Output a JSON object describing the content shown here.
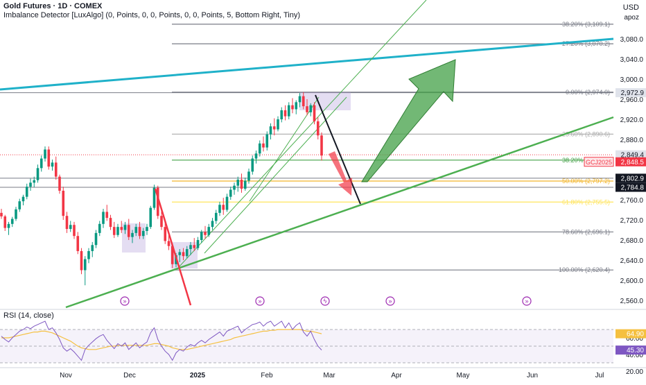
{
  "header": {
    "symbol_line": "Gold Futures · 1D · COMEX",
    "indicator_line": "Imbalance Detector [LuxAlgo] (0, Points, 0, 0, Points, 0, 0, Points, 5, Bottom Right, Tiny)",
    "currency": "USD",
    "apoz": "apoz",
    "rsi_label": "RSI (14, close)"
  },
  "colors": {
    "up": "#089981",
    "down": "#f23645",
    "cyan_line": "#1fb1c9",
    "green_line": "#4caf50",
    "fib_gray": "#787b86",
    "fib_green": "#43a047",
    "fib_orange": "#f2b52b",
    "fib_yellow": "#ffeb3b",
    "rsi_line": "#7e57c2",
    "rsi_ma": "#f5c040",
    "box": "#b39ddb"
  },
  "chart_data": {
    "type": "candlestick",
    "title": "Gold Futures · 1D · COMEX",
    "ylim": [
      2540,
      3150
    ],
    "y_ticks": [
      2560,
      2600,
      2640,
      2680,
      2720,
      2760,
      2800,
      2840,
      2880,
      2920,
      2960,
      3000,
      3040,
      3080
    ],
    "y_tick_labels": [
      "2,560.0",
      "2,600.0",
      "2,640.0",
      "2,680.0",
      "2,720.0",
      "2,760.0",
      "2,800.0",
      "2,840.0",
      "2,880.0",
      "2,920.0",
      "2,960.0",
      "3,000.0",
      "3,040.0",
      "3,080.0"
    ],
    "x_labels": [
      {
        "label": "Nov",
        "date": "2024-11-01"
      },
      {
        "label": "Dec",
        "date": "2024-12-01"
      },
      {
        "label": "2025",
        "date": "2025-01-01",
        "bold": true
      },
      {
        "label": "Feb",
        "date": "2025-02-01"
      },
      {
        "label": "Mar",
        "date": "2025-03-01"
      },
      {
        "label": "Apr",
        "date": "2025-04-01"
      },
      {
        "label": "May",
        "date": "2025-05-01"
      },
      {
        "label": "Jun",
        "date": "2025-06-01"
      },
      {
        "label": "Jul",
        "date": "2025-07-01"
      }
    ],
    "fib_levels": [
      {
        "ratio": "-38.20%",
        "price": 3109.1,
        "label": "-38.20% (3,109.1)",
        "color": "#787b86"
      },
      {
        "ratio": "-27.20%",
        "price": 3070.2,
        "label": "-27.20% (3,070.2)",
        "color": "#787b86"
      },
      {
        "ratio": "0.00%",
        "price": 2974.0,
        "label": "0.00% (2,974.0)",
        "color": "#787b86"
      },
      {
        "ratio": "23.60%",
        "price": 2890.6,
        "label": "23.60% (2,890.6)",
        "color": "#aaaaaa"
      },
      {
        "ratio": "38.20%",
        "price": 2838.9,
        "label": "38.20% (2,838.9)",
        "color": "#43a047"
      },
      {
        "ratio": "50.00%",
        "price": 2797.2,
        "label": "50.00% (2,797.2)",
        "color": "#f2b52b"
      },
      {
        "ratio": "61.80%",
        "price": 2755.5,
        "label": "61.80% (2,755.5)",
        "color": "#ffe45c"
      },
      {
        "ratio": "78.60%",
        "price": 2696.1,
        "label": "78.60% (2,696.1)",
        "color": "#787b86"
      },
      {
        "ratio": "100.00%",
        "price": 2620.4,
        "label": "100.00% (2,620.4)",
        "color": "#787b86"
      }
    ],
    "price_tags": [
      {
        "label": "2,972.9",
        "price": 2972.9,
        "bg": "#e0e3eb",
        "fg": "#131722"
      },
      {
        "label": "2,849.4",
        "price": 2849.4,
        "bg": "#e0e3eb",
        "fg": "#131722"
      },
      {
        "label": "2,848.5",
        "price": 2835.5,
        "bg": "#f23645",
        "fg": "#ffffff"
      },
      {
        "label": "2,802.9",
        "price": 2802.9,
        "bg": "#131722",
        "fg": "#ffffff"
      },
      {
        "label": "2,784.8",
        "price": 2784.8,
        "bg": "#131722",
        "fg": "#ffffff"
      }
    ],
    "symbol_tag": "GCJ2025",
    "candles": [
      [
        2734,
        2742,
        2722,
        2727
      ],
      [
        2727,
        2730,
        2698,
        2704
      ],
      [
        2704,
        2716,
        2690,
        2712
      ],
      [
        2712,
        2726,
        2706,
        2722
      ],
      [
        2722,
        2746,
        2718,
        2741
      ],
      [
        2741,
        2762,
        2736,
        2757
      ],
      [
        2757,
        2770,
        2749,
        2766
      ],
      [
        2766,
        2792,
        2761,
        2786
      ],
      [
        2786,
        2802,
        2778,
        2794
      ],
      [
        2794,
        2806,
        2785,
        2799
      ],
      [
        2799,
        2830,
        2794,
        2823
      ],
      [
        2823,
        2848,
        2816,
        2842
      ],
      [
        2842,
        2866,
        2836,
        2860
      ],
      [
        2860,
        2866,
        2820,
        2826
      ],
      [
        2826,
        2840,
        2818,
        2834
      ],
      [
        2834,
        2846,
        2800,
        2806
      ],
      [
        2806,
        2810,
        2772,
        2778
      ],
      [
        2778,
        2786,
        2720,
        2728
      ],
      [
        2728,
        2736,
        2694,
        2702
      ],
      [
        2702,
        2718,
        2696,
        2710
      ],
      [
        2710,
        2716,
        2682,
        2688
      ],
      [
        2688,
        2696,
        2652,
        2658
      ],
      [
        2658,
        2664,
        2612,
        2620
      ],
      [
        2620,
        2648,
        2590,
        2642
      ],
      [
        2642,
        2664,
        2634,
        2658
      ],
      [
        2658,
        2676,
        2646,
        2670
      ],
      [
        2670,
        2700,
        2664,
        2694
      ],
      [
        2694,
        2718,
        2688,
        2712
      ],
      [
        2712,
        2742,
        2704,
        2736
      ],
      [
        2736,
        2750,
        2718,
        2724
      ],
      [
        2724,
        2730,
        2700,
        2706
      ],
      [
        2706,
        2716,
        2684,
        2690
      ],
      [
        2690,
        2712,
        2686,
        2706
      ],
      [
        2706,
        2718,
        2694,
        2700
      ],
      [
        2700,
        2716,
        2692,
        2710
      ],
      [
        2710,
        2722,
        2680,
        2686
      ],
      [
        2686,
        2700,
        2674,
        2694
      ],
      [
        2694,
        2712,
        2688,
        2706
      ],
      [
        2706,
        2716,
        2682,
        2688
      ],
      [
        2688,
        2704,
        2682,
        2698
      ],
      [
        2698,
        2712,
        2690,
        2706
      ],
      [
        2706,
        2748,
        2702,
        2744
      ],
      [
        2744,
        2790,
        2740,
        2784
      ],
      [
        2784,
        2788,
        2722,
        2728
      ],
      [
        2728,
        2740,
        2700,
        2706
      ],
      [
        2706,
        2716,
        2672,
        2678
      ],
      [
        2678,
        2690,
        2660,
        2668
      ],
      [
        2668,
        2674,
        2624,
        2632
      ],
      [
        2632,
        2654,
        2626,
        2650
      ],
      [
        2650,
        2662,
        2636,
        2656
      ],
      [
        2656,
        2664,
        2640,
        2648
      ],
      [
        2648,
        2668,
        2644,
        2662
      ],
      [
        2662,
        2676,
        2650,
        2670
      ],
      [
        2670,
        2684,
        2658,
        2664
      ],
      [
        2664,
        2686,
        2660,
        2680
      ],
      [
        2680,
        2700,
        2674,
        2696
      ],
      [
        2696,
        2708,
        2682,
        2690
      ],
      [
        2690,
        2712,
        2686,
        2706
      ],
      [
        2706,
        2724,
        2700,
        2718
      ],
      [
        2718,
        2740,
        2712,
        2734
      ],
      [
        2734,
        2756,
        2728,
        2750
      ],
      [
        2750,
        2764,
        2730,
        2740
      ],
      [
        2740,
        2772,
        2736,
        2766
      ],
      [
        2766,
        2786,
        2760,
        2780
      ],
      [
        2780,
        2794,
        2770,
        2788
      ],
      [
        2788,
        2806,
        2776,
        2800
      ],
      [
        2800,
        2812,
        2774,
        2782
      ],
      [
        2782,
        2804,
        2778,
        2798
      ],
      [
        2798,
        2822,
        2792,
        2816
      ],
      [
        2816,
        2848,
        2810,
        2842
      ],
      [
        2842,
        2858,
        2832,
        2852
      ],
      [
        2852,
        2878,
        2846,
        2872
      ],
      [
        2872,
        2886,
        2856,
        2864
      ],
      [
        2864,
        2896,
        2858,
        2890
      ],
      [
        2890,
        2912,
        2880,
        2906
      ],
      [
        2906,
        2922,
        2888,
        2900
      ],
      [
        2900,
        2926,
        2896,
        2920
      ],
      [
        2920,
        2944,
        2914,
        2938
      ],
      [
        2938,
        2948,
        2918,
        2926
      ],
      [
        2926,
        2954,
        2920,
        2948
      ],
      [
        2948,
        2962,
        2932,
        2940
      ],
      [
        2940,
        2958,
        2930,
        2954
      ],
      [
        2954,
        2972,
        2944,
        2966
      ],
      [
        2966,
        2974,
        2940,
        2946
      ],
      [
        2946,
        2960,
        2928,
        2934
      ],
      [
        2934,
        2952,
        2926,
        2948
      ],
      [
        2948,
        2954,
        2910,
        2916
      ],
      [
        2916,
        2924,
        2880,
        2888
      ],
      [
        2888,
        2894,
        2838,
        2848
      ]
    ]
  },
  "rsi_data": {
    "label": "RSI (14, close)",
    "ylim": [
      20,
      80
    ],
    "levels": [
      70,
      50,
      30
    ],
    "ticks": [
      {
        "label": "60.00",
        "value": 60
      },
      {
        "label": "40.00",
        "value": 40
      },
      {
        "label": "20.00",
        "value": 20
      }
    ],
    "value_tags": [
      {
        "label": "64.90",
        "value": 64.9,
        "bg": "#f5c040"
      },
      {
        "label": "45.30",
        "value": 45.3,
        "bg": "#7e57c2"
      }
    ],
    "rsi": [
      62,
      58,
      55,
      60,
      64,
      68,
      70,
      73,
      71,
      74,
      76,
      78,
      80,
      70,
      72,
      66,
      58,
      48,
      44,
      47,
      43,
      38,
      33,
      46,
      51,
      55,
      59,
      62,
      64,
      57,
      52,
      47,
      53,
      50,
      54,
      46,
      50,
      54,
      48,
      52,
      55,
      66,
      72,
      58,
      50,
      44,
      40,
      33,
      42,
      46,
      44,
      49,
      52,
      50,
      54,
      57,
      54,
      58,
      61,
      64,
      67,
      62,
      68,
      70,
      72,
      74,
      66,
      70,
      73,
      76,
      77,
      79,
      74,
      78,
      80,
      74,
      77,
      80,
      72,
      78,
      70,
      75,
      78,
      67,
      62,
      68,
      58,
      50,
      45.3
    ],
    "ma": [
      60,
      60,
      60,
      61,
      62,
      63,
      64,
      65,
      66,
      67,
      67,
      68,
      68,
      67,
      66,
      64,
      62,
      60,
      58,
      56,
      53,
      50,
      48,
      47,
      46,
      46,
      46,
      47,
      48,
      49,
      50,
      50,
      51,
      51,
      51,
      51,
      51,
      51,
      51,
      51,
      51,
      52,
      53,
      53,
      52,
      51,
      50,
      48,
      47,
      46,
      46,
      46,
      47,
      48,
      49,
      50,
      51,
      52,
      53,
      54,
      55,
      56,
      57,
      58,
      60,
      61,
      62,
      63,
      64,
      65,
      66,
      67,
      68,
      68,
      69,
      69,
      70,
      70,
      70,
      70,
      70,
      70,
      70,
      69,
      68,
      68,
      67,
      66,
      64.9
    ]
  },
  "annotations": {
    "imbalance_icons": 5,
    "lightning_icons": 1
  }
}
